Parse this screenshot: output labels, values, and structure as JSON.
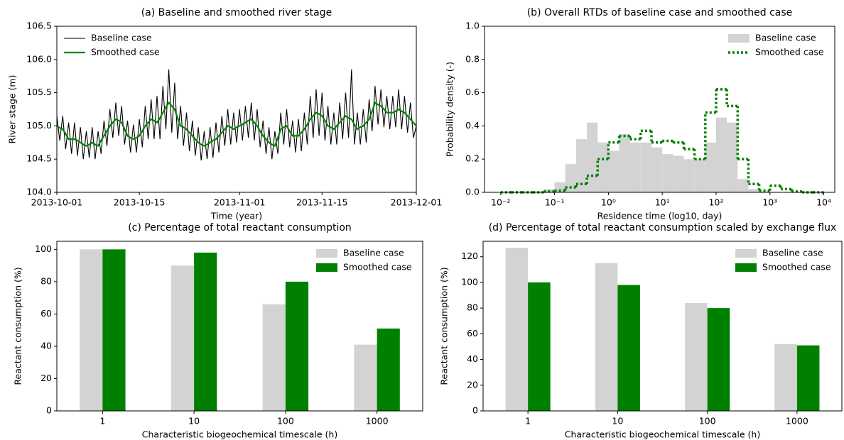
{
  "chart_data": [
    {
      "type": "line",
      "title": "(a) Baseline and smoothed river stage",
      "xlabel": "Time (year)",
      "ylabel": "River stage (m)",
      "legend": "upper left",
      "xlim": [
        0,
        61
      ],
      "xticks": [
        {
          "value": 0,
          "label": "2013-10-01"
        },
        {
          "value": 14,
          "label": "2013-10-15"
        },
        {
          "value": 31,
          "label": "2013-11-01"
        },
        {
          "value": 45,
          "label": "2013-11-15"
        },
        {
          "value": 61,
          "label": "2013-12-01"
        }
      ],
      "ylim": [
        104,
        106.5
      ],
      "yticks": [
        {
          "value": 104,
          "label": "104.0"
        },
        104.5,
        {
          "value": 105,
          "label": "105.0"
        },
        105.5,
        {
          "value": 106,
          "label": "106.0"
        },
        106.5
      ],
      "x": [
        0,
        0.5,
        1,
        1.5,
        2,
        2.5,
        3,
        3.5,
        4,
        4.5,
        5,
        5.5,
        6,
        6.5,
        7,
        7.5,
        8,
        8.5,
        9,
        9.5,
        10,
        10.5,
        11,
        11.5,
        12,
        12.5,
        13,
        13.5,
        14,
        14.5,
        15,
        15.5,
        16,
        16.5,
        17,
        17.5,
        18,
        18.5,
        19,
        19.5,
        20,
        20.5,
        21,
        21.5,
        22,
        22.5,
        23,
        23.5,
        24,
        24.5,
        25,
        25.5,
        26,
        26.5,
        27,
        27.5,
        28,
        28.5,
        29,
        29.5,
        30,
        30.5,
        31,
        31.5,
        32,
        32.5,
        33,
        33.5,
        34,
        34.5,
        35,
        35.5,
        36,
        36.5,
        37,
        37.5,
        38,
        38.5,
        39,
        39.5,
        40,
        40.5,
        41,
        41.5,
        42,
        42.5,
        43,
        43.5,
        44,
        44.5,
        45,
        45.5,
        46,
        46.5,
        47,
        47.5,
        48,
        48.5,
        49,
        49.5,
        50,
        50.5,
        51,
        51.5,
        52,
        52.5,
        53,
        53.5,
        54,
        54.5,
        55,
        55.5,
        56,
        56.5,
        57,
        57.5,
        58,
        58.5,
        59,
        59.5,
        60,
        60.5,
        61
      ],
      "series": [
        {
          "name": "Baseline case",
          "color": "#000000",
          "values": [
            105.15,
            104.78,
            105.15,
            104.65,
            105.05,
            104.58,
            105.05,
            104.55,
            104.98,
            104.5,
            104.92,
            104.52,
            104.98,
            104.5,
            104.92,
            104.58,
            105.08,
            104.7,
            105.25,
            104.82,
            105.35,
            104.85,
            105.3,
            104.72,
            105.08,
            104.6,
            105.02,
            104.6,
            105.1,
            104.68,
            105.3,
            104.8,
            105.4,
            104.8,
            105.45,
            104.8,
            105.6,
            104.95,
            105.85,
            104.9,
            105.65,
            104.8,
            105.3,
            104.7,
            105.2,
            104.62,
            105.08,
            104.55,
            104.98,
            104.48,
            104.92,
            104.5,
            104.98,
            104.52,
            105.05,
            104.6,
            105.15,
            104.7,
            105.25,
            104.72,
            105.2,
            104.75,
            105.25,
            104.78,
            105.3,
            104.82,
            105.35,
            104.78,
            105.25,
            104.68,
            105.08,
            104.58,
            104.98,
            104.5,
            104.92,
            104.58,
            105.2,
            104.72,
            105.25,
            104.68,
            105.08,
            104.6,
            105.1,
            104.62,
            105.2,
            104.72,
            105.45,
            104.82,
            105.55,
            104.85,
            105.5,
            104.78,
            105.3,
            104.72,
            105.2,
            104.72,
            105.35,
            104.8,
            105.5,
            104.82,
            105.85,
            104.72,
            105.2,
            104.72,
            105.25,
            104.75,
            105.4,
            104.92,
            105.6,
            105.02,
            105.55,
            104.98,
            105.45,
            104.95,
            105.45,
            104.98,
            105.55,
            104.95,
            105.45,
            104.9,
            105.35,
            104.82,
            105.0
          ]
        },
        {
          "name": "Smoothed case",
          "color": "#008000",
          "values": [
            105.0,
            104.97,
            104.95,
            104.88,
            104.8,
            104.8,
            104.8,
            104.78,
            104.75,
            104.72,
            104.7,
            104.72,
            104.75,
            104.72,
            104.7,
            104.78,
            104.85,
            104.92,
            105.0,
            105.05,
            105.1,
            105.08,
            105.05,
            104.95,
            104.85,
            104.82,
            104.8,
            104.82,
            104.85,
            104.92,
            105.0,
            105.05,
            105.1,
            105.08,
            105.05,
            105.12,
            105.2,
            105.28,
            105.35,
            105.3,
            105.25,
            105.12,
            105.0,
            104.98,
            104.95,
            104.9,
            104.85,
            104.8,
            104.75,
            104.72,
            104.7,
            104.72,
            104.75,
            104.78,
            104.8,
            104.85,
            104.9,
            104.95,
            105.0,
            104.98,
            104.95,
            104.98,
            105.0,
            105.02,
            105.05,
            105.08,
            105.1,
            105.05,
            105.0,
            104.92,
            104.85,
            104.8,
            104.75,
            104.72,
            104.7,
            104.82,
            104.95,
            104.98,
            105.0,
            104.92,
            104.85,
            104.85,
            104.85,
            104.9,
            104.95,
            105.02,
            105.1,
            105.15,
            105.2,
            105.18,
            105.15,
            105.08,
            105.0,
            104.98,
            104.95,
            105.0,
            105.05,
            105.1,
            105.15,
            105.12,
            105.1,
            105.02,
            104.95,
            104.98,
            105.0,
            105.05,
            105.1,
            105.22,
            105.35,
            105.32,
            105.3,
            105.25,
            105.2,
            105.2,
            105.2,
            105.22,
            105.25,
            105.22,
            105.2,
            105.15,
            105.1,
            105.05,
            105.0
          ]
        }
      ]
    },
    {
      "type": "histogram",
      "title": "(b) Overall RTDs of baseline case and smoothed case",
      "xlabel": "Residence time (log10, day)",
      "ylabel": "Probability density (-)",
      "legend": "upper right",
      "log_x": true,
      "xlim": [
        0.005,
        16000
      ],
      "xticks": [
        {
          "value": 0.01,
          "label": "10⁻²"
        },
        {
          "value": 0.1,
          "label": "10⁻¹"
        },
        {
          "value": 1,
          "label": "10⁰"
        },
        {
          "value": 10,
          "label": "10¹"
        },
        {
          "value": 100,
          "label": "10²"
        },
        {
          "value": 1000,
          "label": "10³"
        },
        {
          "value": 10000,
          "label": "10⁴"
        }
      ],
      "ylim": [
        0,
        1
      ],
      "yticks": [
        {
          "value": 0,
          "label": "0.0"
        },
        0.2,
        0.4,
        0.6,
        0.8,
        {
          "value": 1,
          "label": "1.0"
        }
      ],
      "bins": [
        0.01,
        0.0158,
        0.0251,
        0.0398,
        0.0631,
        0.1,
        0.158,
        0.251,
        0.398,
        0.631,
        1,
        1.585,
        2.512,
        3.981,
        6.31,
        10,
        15.85,
        25.12,
        39.81,
        63.1,
        100,
        158.5,
        251.2,
        398.1,
        631,
        1000,
        1585,
        2512,
        3981,
        6310,
        10000
      ],
      "series": [
        {
          "name": "Baseline case",
          "color": "#d3d3d3",
          "style": "bar",
          "values": [
            0,
            0,
            0,
            0.005,
            0.02,
            0.06,
            0.17,
            0.32,
            0.42,
            0.3,
            0.25,
            0.35,
            0.3,
            0.3,
            0.27,
            0.23,
            0.22,
            0.2,
            0.2,
            0.3,
            0.45,
            0.42,
            0.08,
            0.02,
            0.005,
            0,
            0,
            0,
            0,
            0
          ]
        },
        {
          "name": "Smoothed case",
          "color": "#008000",
          "style": "dotted",
          "values": [
            0,
            0,
            0,
            0,
            0.005,
            0.01,
            0.03,
            0.05,
            0.1,
            0.2,
            0.3,
            0.34,
            0.32,
            0.37,
            0.3,
            0.31,
            0.3,
            0.26,
            0.2,
            0.48,
            0.62,
            0.52,
            0.2,
            0.05,
            0.01,
            0.04,
            0.02,
            0.005,
            0,
            0
          ]
        }
      ]
    },
    {
      "type": "bar",
      "title": "(c) Percentage of total reactant consumption",
      "xlabel": "Characteristic biogeochemical timescale (h)",
      "ylabel": "Reactant consumption (%)",
      "legend": "upper right",
      "categories": [
        "1",
        "10",
        "100",
        "1000"
      ],
      "ylim": [
        0,
        105
      ],
      "yticks": [
        0,
        20,
        40,
        60,
        80,
        100
      ],
      "series": [
        {
          "name": "Baseline case",
          "color": "#d3d3d3",
          "values": [
            100,
            90,
            66,
            41
          ]
        },
        {
          "name": "Smoothed case",
          "color": "#008000",
          "values": [
            100,
            98,
            80,
            51
          ]
        }
      ]
    },
    {
      "type": "bar",
      "title": "(d) Percentage of total reactant consumption scaled by exchange flux",
      "xlabel": "Characteristic biogeochemical timescale (h)",
      "ylabel": "Reactant consumption (%)",
      "legend": "upper right",
      "categories": [
        "1",
        "10",
        "100",
        "1000"
      ],
      "ylim": [
        0,
        132
      ],
      "yticks": [
        0,
        20,
        40,
        60,
        80,
        100,
        120
      ],
      "series": [
        {
          "name": "Baseline case",
          "color": "#d3d3d3",
          "values": [
            127,
            115,
            84,
            52
          ]
        },
        {
          "name": "Smoothed case",
          "color": "#008000",
          "values": [
            100,
            98,
            80,
            51
          ]
        }
      ]
    }
  ]
}
